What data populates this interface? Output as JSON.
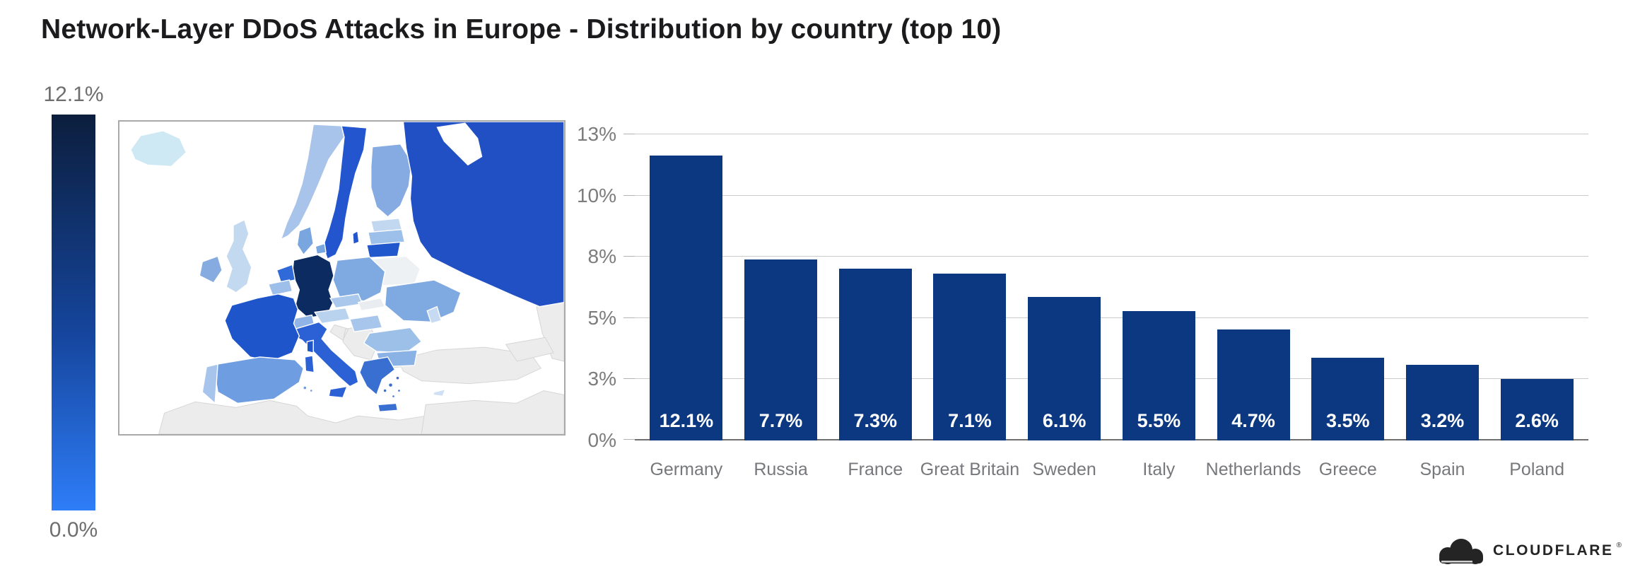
{
  "page": {
    "title": "Network-Layer DDoS Attacks in Europe - Distribution by country (top 10)"
  },
  "legend": {
    "max_label": "12.1%",
    "min_label": "0.0%",
    "gradient_top": "#0c1e3d",
    "gradient_mid": "#15459c",
    "gradient_bottom": "#2e7df8"
  },
  "map": {
    "border_color": "#a9a9a9",
    "water_color": "#ffffff",
    "country_colors": {
      "iceland": "#cfe9f4",
      "norway": "#a8c4ea",
      "sweden": "#2356ce",
      "finland": "#85abe2",
      "russia": "#2150c4",
      "estonia": "#c2d8f0",
      "latvia": "#9cc0ea",
      "lithuania": "#2157cc",
      "belarus": "#eef1f4",
      "denmark": "#7aa6df",
      "netherlands": "#2f6ad8",
      "belgium": "#9dbfe9",
      "germany": "#0c2c61",
      "poland": "#7fa9e1",
      "czechia": "#aac8ec",
      "slovakia": "#e9edf2",
      "austria": "#b9d2ee",
      "switzerland": "#8fb4e5",
      "hungary": "#a8c6ec",
      "ukraine": "#7fa9e1",
      "moldova": "#c6daf2",
      "romania": "#9dc0e9",
      "bulgaria": "#8ab2e5",
      "greece": "#3a6fd2",
      "italy": "#2b61d4",
      "uk": "#c2d9ef",
      "ireland": "#85abe0",
      "france": "#1f55cb",
      "spain": "#6f9de2",
      "portugal": "#a6c4ec",
      "cyprus": "#cfe0f4",
      "gray_land": "#ececec"
    }
  },
  "chart_data": {
    "type": "bar",
    "title": "Network-Layer DDoS Attacks in Europe - Distribution by country (top 10)",
    "categories": [
      "Germany",
      "Russia",
      "France",
      "Great Britain",
      "Sweden",
      "Italy",
      "Netherlands",
      "Greece",
      "Spain",
      "Poland"
    ],
    "values": [
      12.1,
      7.7,
      7.3,
      7.1,
      6.1,
      5.5,
      4.7,
      3.5,
      3.2,
      2.6
    ],
    "bar_labels": [
      "12.1%",
      "7.7%",
      "7.3%",
      "7.1%",
      "6.1%",
      "5.5%",
      "4.7%",
      "3.5%",
      "3.2%",
      "2.6%"
    ],
    "xlabel": "",
    "ylabel": "",
    "ylim": [
      0,
      13
    ],
    "y_ticks": [
      {
        "value": 0,
        "label": "0%"
      },
      {
        "value": 2.6,
        "label": "3%"
      },
      {
        "value": 5.2,
        "label": "5%"
      },
      {
        "value": 7.8,
        "label": "8%"
      },
      {
        "value": 10.4,
        "label": "10%"
      },
      {
        "value": 13,
        "label": "13%"
      }
    ],
    "grid": true,
    "legend_position": "none",
    "bar_color": "#0b3880",
    "value_label_color": "#ffffff",
    "tick_label_color": "#7c7c7c",
    "category_label_color": "#77787b"
  },
  "footer": {
    "logo_text": "CLOUDFLARE",
    "trademark": "®"
  }
}
